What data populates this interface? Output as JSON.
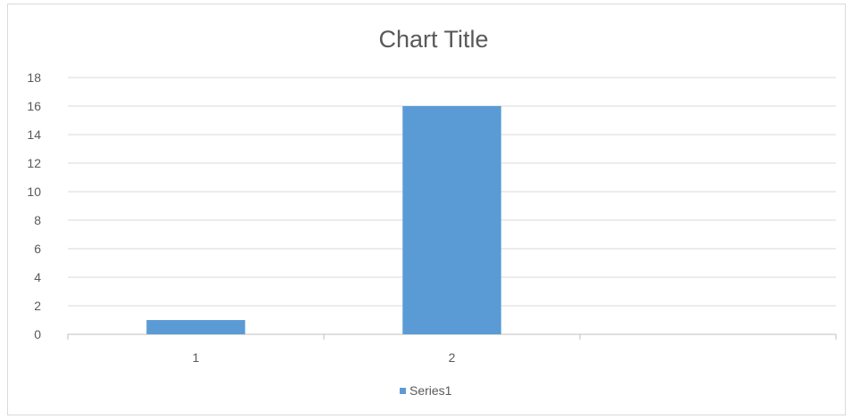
{
  "chart_data": {
    "type": "bar",
    "title": "Chart Title",
    "categories": [
      "1",
      "2",
      ""
    ],
    "series": [
      {
        "name": "Series1",
        "values": [
          1,
          16,
          null
        ]
      }
    ],
    "ylim": [
      0,
      18
    ],
    "yticks": [
      "0",
      "2",
      "4",
      "6",
      "8",
      "10",
      "12",
      "14",
      "16",
      "18"
    ],
    "grid": true,
    "legend_position": "bottom",
    "colors": {
      "bar": "#5B9BD5",
      "grid": "#d9d9d9",
      "axis": "#bfbfbf",
      "text": "#595959"
    }
  }
}
